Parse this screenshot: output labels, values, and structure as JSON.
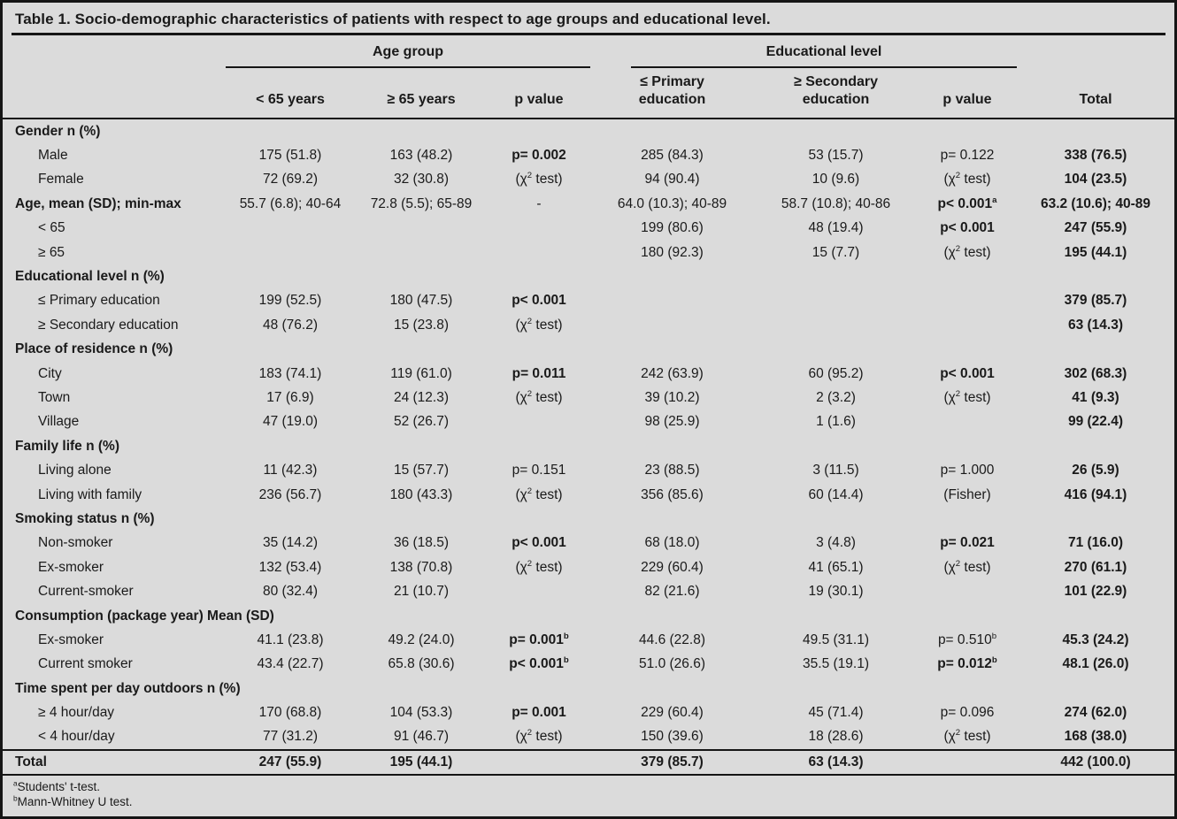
{
  "title": "Table 1. Socio-demographic characteristics of patients with respect to age groups and educational level.",
  "header": {
    "age_group": "Age group",
    "edu_group": "Educational level",
    "lt65": "< 65 years",
    "ge65": "≥ 65 years",
    "p_age": "p value",
    "primary_l1": "≤ Primary",
    "primary_l2": "education",
    "secondary_l1": "≥ Secondary",
    "secondary_l2": "education",
    "p_edu": "p value",
    "total": "Total"
  },
  "rows": [
    {
      "label": "Gender n (%)",
      "style": "section",
      "cells": [
        "",
        "",
        "",
        "",
        "",
        "",
        ""
      ],
      "bold": []
    },
    {
      "label": "Male",
      "style": "sub",
      "cells": [
        "175 (51.8)",
        "163 (48.2)",
        "p= 0.002",
        "285 (84.3)",
        "53 (15.7)",
        "p= 0.122",
        "338 (76.5)"
      ],
      "bold": [
        2,
        6
      ]
    },
    {
      "label": "Female",
      "style": "sub",
      "cells": [
        "72 (69.2)",
        "32 (30.8)",
        "(χ^2 test)",
        "94 (90.4)",
        "10 (9.6)",
        "(χ^2 test)",
        "104 (23.5)"
      ],
      "bold": [
        6
      ]
    },
    {
      "label": "Age, mean (SD); min-max",
      "style": "flush",
      "cells": [
        "55.7 (6.8); 40-64",
        "72.8 (5.5); 65-89",
        "-",
        "64.0 (10.3); 40-89",
        "58.7 (10.8); 40-86",
        "p< 0.001^a",
        "63.2 (10.6); 40-89"
      ],
      "bold": [
        5,
        6
      ]
    },
    {
      "label": "< 65",
      "style": "sub",
      "cells": [
        "",
        "",
        "",
        "199 (80.6)",
        "48 (19.4)",
        "p< 0.001",
        "247 (55.9)"
      ],
      "bold": [
        5,
        6
      ]
    },
    {
      "label": "≥ 65",
      "style": "sub",
      "cells": [
        "",
        "",
        "",
        "180 (92.3)",
        "15 (7.7)",
        "(χ^2 test)",
        "195 (44.1)"
      ],
      "bold": [
        6
      ]
    },
    {
      "label": "Educational level n (%)",
      "style": "section",
      "cells": [
        "",
        "",
        "",
        "",
        "",
        "",
        ""
      ],
      "bold": []
    },
    {
      "label": "≤ Primary education",
      "style": "sub",
      "cells": [
        "199 (52.5)",
        "180 (47.5)",
        "p< 0.001",
        "",
        "",
        "",
        "379 (85.7)"
      ],
      "bold": [
        2,
        6
      ]
    },
    {
      "label": "≥ Secondary education",
      "style": "sub",
      "cells": [
        "48 (76.2)",
        "15 (23.8)",
        "(χ^2 test)",
        "",
        "",
        "",
        "63 (14.3)"
      ],
      "bold": [
        6
      ]
    },
    {
      "label": "Place of residence n (%)",
      "style": "section",
      "cells": [
        "",
        "",
        "",
        "",
        "",
        "",
        ""
      ],
      "bold": []
    },
    {
      "label": "City",
      "style": "sub",
      "cells": [
        "183 (74.1)",
        "119 (61.0)",
        "p= 0.011",
        "242 (63.9)",
        "60 (95.2)",
        "p< 0.001",
        "302 (68.3)"
      ],
      "bold": [
        2,
        5,
        6
      ]
    },
    {
      "label": "Town",
      "style": "sub",
      "cells": [
        "17 (6.9)",
        "24 (12.3)",
        "(χ^2 test)",
        "39 (10.2)",
        "2 (3.2)",
        "(χ^2 test)",
        "41 (9.3)"
      ],
      "bold": [
        6
      ]
    },
    {
      "label": "Village",
      "style": "sub",
      "cells": [
        "47 (19.0)",
        "52 (26.7)",
        "",
        "98 (25.9)",
        "1 (1.6)",
        "",
        "99 (22.4)"
      ],
      "bold": [
        6
      ]
    },
    {
      "label": "Family life n (%)",
      "style": "section",
      "cells": [
        "",
        "",
        "",
        "",
        "",
        "",
        ""
      ],
      "bold": []
    },
    {
      "label": "Living alone",
      "style": "sub",
      "cells": [
        "11 (42.3)",
        "15 (57.7)",
        "p= 0.151",
        "23 (88.5)",
        "3 (11.5)",
        "p= 1.000",
        "26 (5.9)"
      ],
      "bold": [
        6
      ]
    },
    {
      "label": "Living with family",
      "style": "sub",
      "cells": [
        "236 (56.7)",
        "180 (43.3)",
        "(χ^2 test)",
        "356 (85.6)",
        "60 (14.4)",
        "(Fisher)",
        "416 (94.1)"
      ],
      "bold": [
        6
      ]
    },
    {
      "label": "Smoking status n (%)",
      "style": "section",
      "cells": [
        "",
        "",
        "",
        "",
        "",
        "",
        ""
      ],
      "bold": []
    },
    {
      "label": "Non-smoker",
      "style": "sub",
      "cells": [
        "35 (14.2)",
        "36 (18.5)",
        "p< 0.001",
        "68 (18.0)",
        "3 (4.8)",
        "p= 0.021",
        "71 (16.0)"
      ],
      "bold": [
        2,
        5,
        6
      ]
    },
    {
      "label": "Ex-smoker",
      "style": "sub",
      "cells": [
        "132 (53.4)",
        "138 (70.8)",
        "(χ^2 test)",
        "229 (60.4)",
        "41 (65.1)",
        "(χ^2 test)",
        "270 (61.1)"
      ],
      "bold": [
        6
      ]
    },
    {
      "label": "Current-smoker",
      "style": "sub",
      "cells": [
        "80 (32.4)",
        "21 (10.7)",
        "",
        "82 (21.6)",
        "19 (30.1)",
        "",
        "101 (22.9)"
      ],
      "bold": [
        6
      ]
    },
    {
      "label": "Consumption (package year) Mean (SD)",
      "style": "section",
      "cells": [
        "",
        "",
        "",
        "",
        "",
        "",
        ""
      ],
      "bold": []
    },
    {
      "label": "Ex-smoker",
      "style": "sub",
      "cells": [
        "41.1 (23.8)",
        "49.2  (24.0)",
        "p= 0.001^b",
        "44.6 (22.8)",
        "49.5 (31.1)",
        "p= 0.510^b",
        "45.3 (24.2)"
      ],
      "bold": [
        2,
        6
      ]
    },
    {
      "label": "Current smoker",
      "style": "sub",
      "cells": [
        "43.4 (22.7)",
        "65.8  (30.6)",
        "p< 0.001^b",
        "51.0 (26.6)",
        "35.5 (19.1)",
        "p= 0.012^b",
        "48.1 (26.0)"
      ],
      "bold": [
        2,
        5,
        6
      ]
    },
    {
      "label": "Time spent per day outdoors n (%)",
      "style": "section",
      "cells": [
        "",
        "",
        "",
        "",
        "",
        "",
        ""
      ],
      "bold": []
    },
    {
      "label": "≥ 4 hour/day",
      "style": "sub",
      "cells": [
        "170 (68.8)",
        "104 (53.3)",
        "p= 0.001",
        "229 (60.4)",
        "45 (71.4)",
        "p= 0.096",
        "274 (62.0)"
      ],
      "bold": [
        2,
        6
      ]
    },
    {
      "label": "< 4 hour/day",
      "style": "sub",
      "cells": [
        "77 (31.2)",
        "91 (46.7)",
        "(χ^2 test)",
        "150 (39.6)",
        "18 (28.6)",
        "(χ^2 test)",
        "168 (38.0)"
      ],
      "bold": [
        6
      ]
    },
    {
      "label": "Total",
      "style": "total",
      "cells": [
        "247 (55.9)",
        "195 (44.1)",
        "",
        "379 (85.7)",
        "63 (14.3)",
        "",
        "442 (100.0)"
      ],
      "bold": [
        0,
        1,
        3,
        4,
        6
      ]
    }
  ],
  "footnotes": [
    "^aStudents' t-test.",
    "^bMann-Whitney U test."
  ],
  "colors": {
    "background": "#dbdbdb",
    "text": "#1a1a1a",
    "rule": "#151515"
  }
}
